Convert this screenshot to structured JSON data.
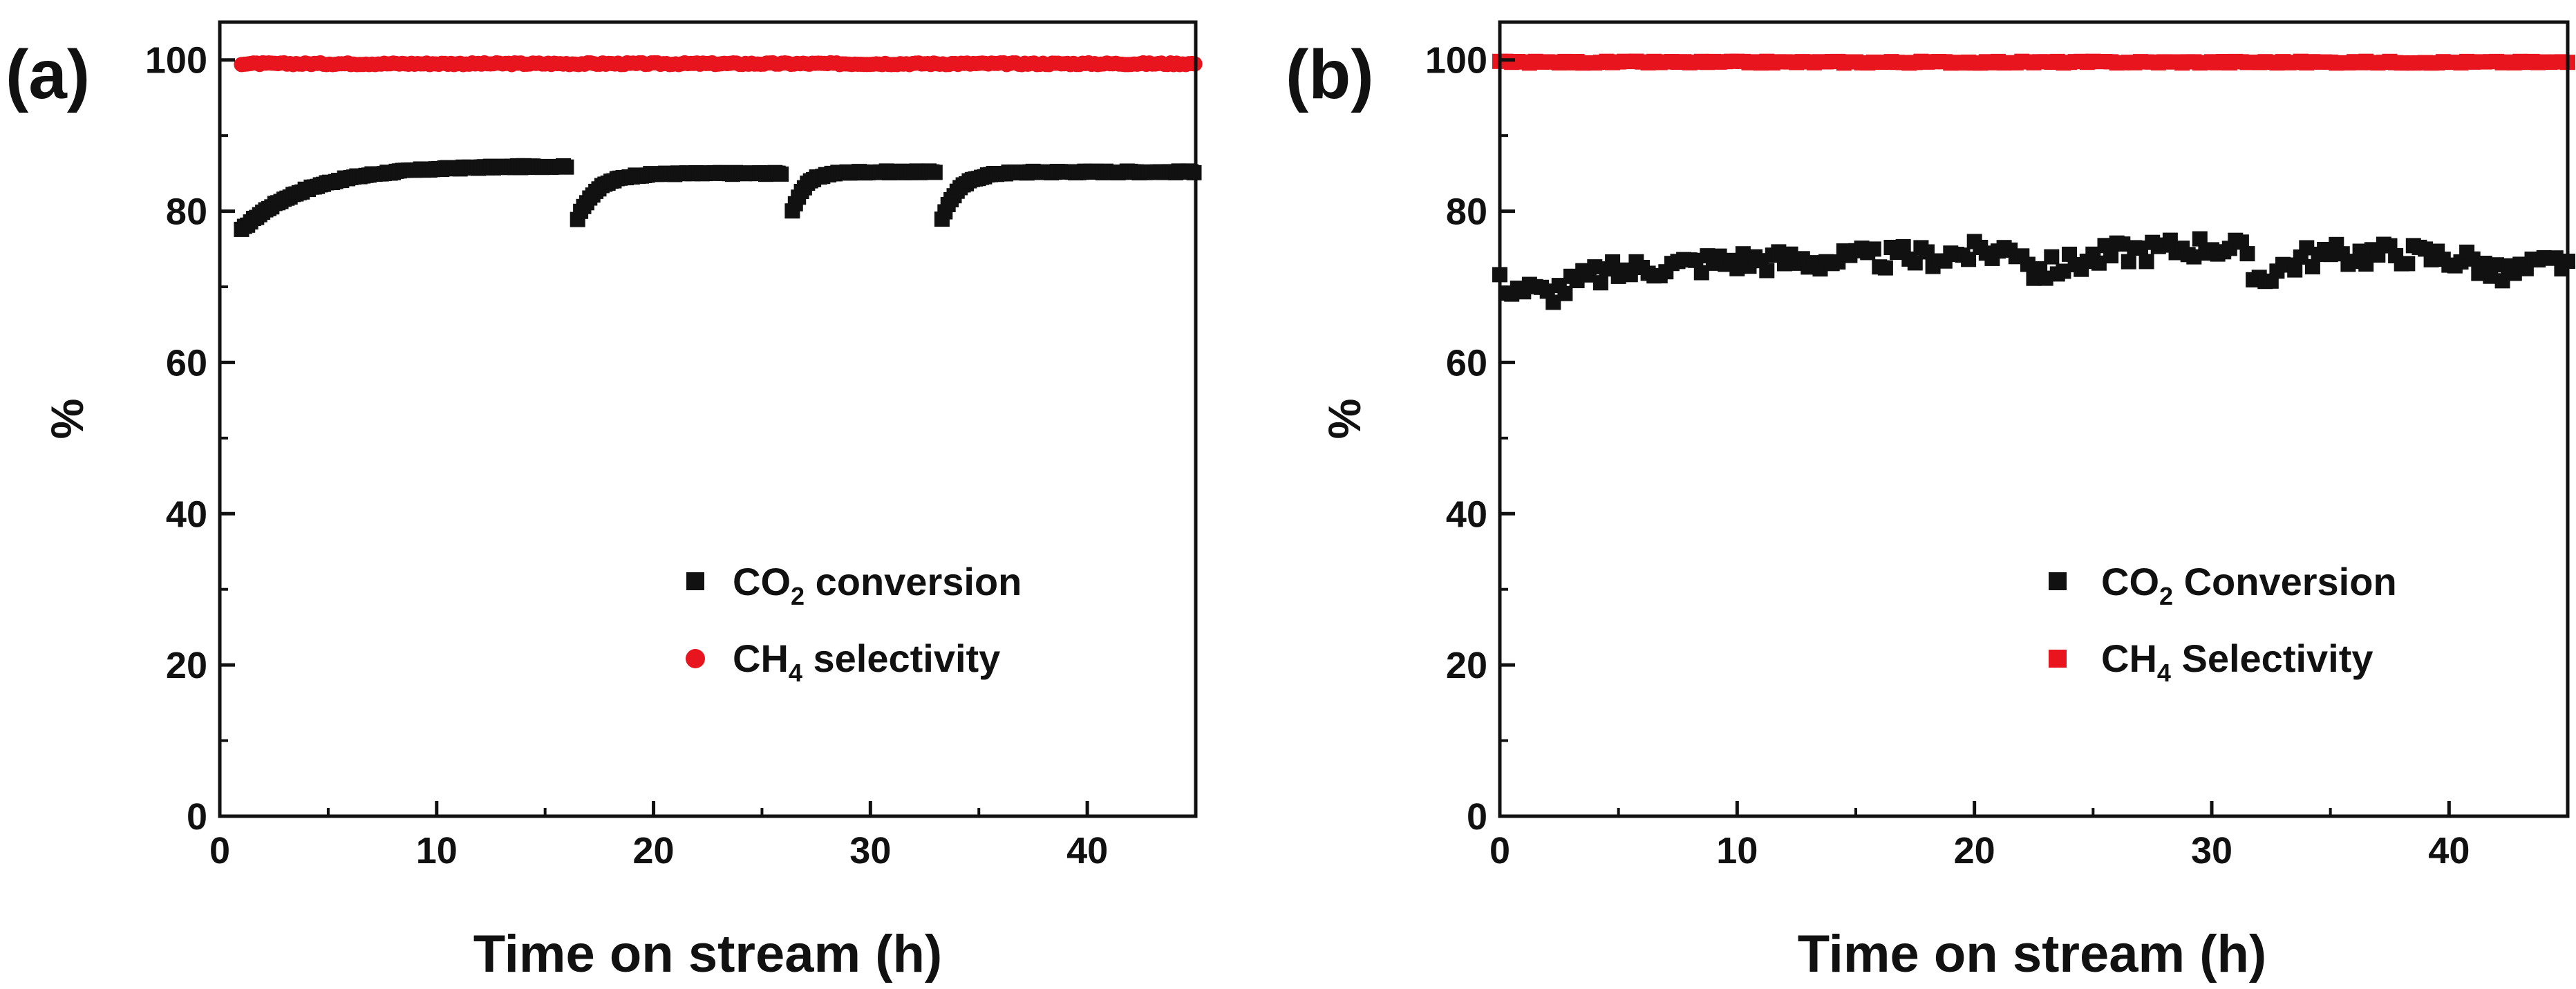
{
  "chart_data": [
    {
      "panel_label": "(a)",
      "type": "scatter",
      "xlabel": "Time on stream (h)",
      "ylabel": "%",
      "xlim": [
        0,
        45
      ],
      "ylim": [
        0,
        105
      ],
      "xticks": [
        0,
        10,
        20,
        30,
        40
      ],
      "yticks": [
        0,
        20,
        40,
        60,
        80,
        100
      ],
      "grid": false,
      "legend_position": "center-right",
      "series": [
        {
          "name": "CO2 conversion",
          "legend_main": "CO",
          "legend_sub": "2",
          "legend_rest": " conversion",
          "marker": "square",
          "color": "#111111",
          "segments": [
            {
              "t0": 1.0,
              "t1": 16.0,
              "v0": 77.5,
              "v_end": 86.0,
              "tau": 3.0
            },
            {
              "t0": 16.5,
              "t1": 26.0,
              "v0": 79.0,
              "v_end": 85.0,
              "tau": 0.9
            },
            {
              "t0": 26.4,
              "t1": 33.0,
              "v0": 80.0,
              "v_end": 85.2,
              "tau": 0.6
            },
            {
              "t0": 33.3,
              "t1": 45.0,
              "v0": 79.0,
              "v_end": 85.2,
              "tau": 0.8
            }
          ]
        },
        {
          "name": "CH4 selectivity",
          "legend_main": "CH",
          "legend_sub": "4",
          "legend_rest": " selectivity",
          "marker": "circle",
          "color": "#e8141e",
          "constant": {
            "t0": 1.0,
            "t1": 45.0,
            "value": 99.5
          }
        }
      ]
    },
    {
      "panel_label": "(b)",
      "type": "scatter",
      "xlabel": "Time on stream (h)",
      "ylabel": "%",
      "xlim": [
        0,
        45
      ],
      "ylim": [
        0,
        105
      ],
      "xticks": [
        0,
        10,
        20,
        30,
        40
      ],
      "yticks": [
        0,
        20,
        40,
        60,
        80,
        100
      ],
      "grid": false,
      "legend_position": "center-right",
      "series": [
        {
          "name": "CO2 Conversion",
          "legend_main": "CO",
          "legend_sub": "2",
          "legend_rest": " Conversion",
          "marker": "square",
          "color": "#111111",
          "trend_x": [
            0,
            2,
            4,
            6,
            10,
            14,
            18,
            22,
            22.5,
            26,
            30,
            31.2,
            31.8,
            34,
            38,
            41,
            42,
            45
          ],
          "trend_y": [
            70.5,
            69,
            71.5,
            72.5,
            73.5,
            73.5,
            74,
            75,
            72,
            74.5,
            75.5,
            75,
            71,
            74,
            74.5,
            73.5,
            71.5,
            73.5
          ]
        },
        {
          "name": "CH4 Selectivity",
          "legend_main": "CH",
          "legend_sub": "4",
          "legend_rest": " Selectivity",
          "marker": "square",
          "color": "#e8141e",
          "constant": {
            "t0": 0.0,
            "t1": 45.0,
            "value": 99.7
          }
        }
      ]
    }
  ]
}
